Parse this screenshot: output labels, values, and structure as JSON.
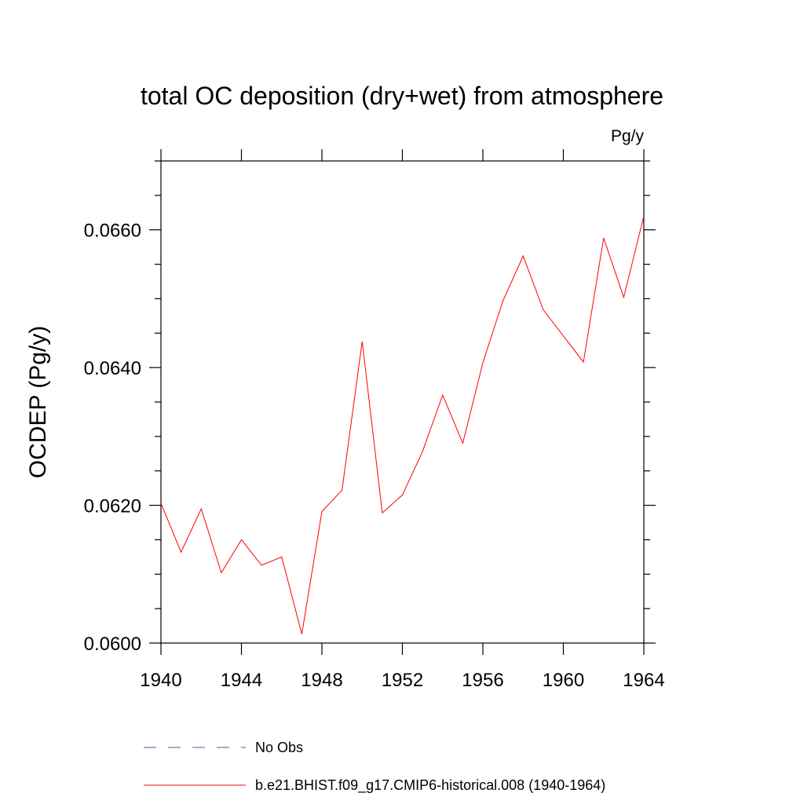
{
  "chart_data": {
    "type": "line",
    "title": "total OC deposition (dry+wet) from atmosphere",
    "units": "Pg/y",
    "xlabel": "",
    "ylabel": "OCDEP  (Pg/y)",
    "xlim": [
      1940,
      1964
    ],
    "ylim": [
      0.06,
      0.067
    ],
    "xticks": [
      1940,
      1944,
      1948,
      1952,
      1956,
      1960,
      1964
    ],
    "xtick_labels": [
      "1940",
      "1944",
      "1948",
      "1952",
      "1956",
      "1960",
      "1964"
    ],
    "yticks": [
      0.06,
      0.062,
      0.064,
      0.066
    ],
    "ytick_labels": [
      "0.0600",
      "0.0620",
      "0.0640",
      "0.0660"
    ],
    "grid": false,
    "legend_position": "bottom",
    "series": [
      {
        "name": "No Obs",
        "color": "#5555aa",
        "dash": "dashed",
        "x": [],
        "values": []
      },
      {
        "name": "b.e21.BHIST.f09_g17.CMIP6-historical.008 (1940-1964)",
        "color": "#ff0000",
        "dash": "solid",
        "x": [
          1940,
          1941,
          1942,
          1943,
          1944,
          1945,
          1946,
          1947,
          1948,
          1949,
          1950,
          1951,
          1952,
          1953,
          1954,
          1955,
          1956,
          1957,
          1958,
          1959,
          1960,
          1961,
          1962,
          1963,
          1964
        ],
        "values": [
          0.06203,
          0.06132,
          0.06195,
          0.06102,
          0.0615,
          0.06113,
          0.06125,
          0.06013,
          0.06191,
          0.06222,
          0.06438,
          0.06189,
          0.06215,
          0.06278,
          0.0636,
          0.0629,
          0.06407,
          0.06497,
          0.06562,
          0.06484,
          0.06446,
          0.06408,
          0.06588,
          0.06502,
          0.0662
        ]
      }
    ]
  }
}
